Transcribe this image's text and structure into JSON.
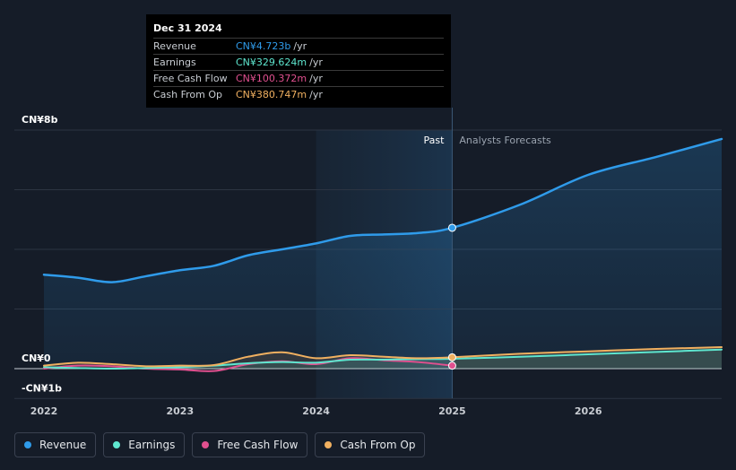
{
  "tooltip": {
    "date": "Dec 31 2024",
    "rows": [
      {
        "label": "Revenue",
        "value": "CN¥4.723b",
        "unit": "/yr",
        "color": "#2f9bea"
      },
      {
        "label": "Earnings",
        "value": "CN¥329.624m",
        "unit": "/yr",
        "color": "#5ee6cf"
      },
      {
        "label": "Free Cash Flow",
        "value": "CN¥100.372m",
        "unit": "/yr",
        "color": "#e0508f"
      },
      {
        "label": "Cash From Op",
        "value": "CN¥380.747m",
        "unit": "/yr",
        "color": "#f0b060"
      }
    ]
  },
  "legend": [
    {
      "label": "Revenue",
      "color": "#2f9bea"
    },
    {
      "label": "Earnings",
      "color": "#5ee6cf"
    },
    {
      "label": "Free Cash Flow",
      "color": "#e0508f"
    },
    {
      "label": "Cash From Op",
      "color": "#f0b060"
    }
  ],
  "chart_data": {
    "type": "line",
    "title": "",
    "xlabel": "",
    "ylabel": "",
    "ylim": [
      -1,
      8
    ],
    "xlim": [
      2022,
      2026.98
    ],
    "y_tick_labels": [
      {
        "value": 8,
        "label": "CN¥8b"
      },
      {
        "value": 0,
        "label": "CN¥0"
      },
      {
        "value": -1,
        "label": "-CN¥1b"
      }
    ],
    "gridlines": [
      8,
      6,
      4,
      2,
      0,
      -1
    ],
    "x_ticks": [
      {
        "value": 2022,
        "label": "2022"
      },
      {
        "value": 2023,
        "label": "2023"
      },
      {
        "value": 2024,
        "label": "2024"
      },
      {
        "value": 2025,
        "label": "2025"
      },
      {
        "value": 2026,
        "label": "2026"
      }
    ],
    "divider_x": 2025,
    "past_label": "Past",
    "forecast_label": "Analysts Forecasts",
    "series": [
      {
        "name": "Revenue",
        "color": "#2f9bea",
        "x": [
          2022,
          2022.25,
          2022.5,
          2022.75,
          2023,
          2023.25,
          2023.5,
          2023.75,
          2024,
          2024.25,
          2024.5,
          2024.75,
          2025,
          2025.5,
          2026,
          2026.5,
          2026.98
        ],
        "y": [
          3.15,
          3.05,
          2.9,
          3.1,
          3.3,
          3.45,
          3.8,
          4.0,
          4.2,
          4.45,
          4.5,
          4.55,
          4.723,
          5.5,
          6.5,
          7.1,
          7.7
        ]
      },
      {
        "name": "Earnings",
        "color": "#5ee6cf",
        "x": [
          2022,
          2022.25,
          2022.5,
          2022.75,
          2023,
          2023.25,
          2023.5,
          2023.75,
          2024,
          2024.25,
          2024.5,
          2024.75,
          2025,
          2025.5,
          2026,
          2026.5,
          2026.98
        ],
        "y": [
          0.05,
          0.02,
          0.0,
          0.02,
          0.05,
          0.1,
          0.18,
          0.22,
          0.2,
          0.3,
          0.3,
          0.32,
          0.33,
          0.4,
          0.48,
          0.56,
          0.64
        ]
      },
      {
        "name": "Free Cash Flow",
        "color": "#e0508f",
        "x": [
          2022,
          2022.25,
          2022.5,
          2022.75,
          2023,
          2023.25,
          2023.5,
          2023.75,
          2024,
          2024.25,
          2024.5,
          2024.75,
          2025
        ],
        "y": [
          0.0,
          0.1,
          0.08,
          0.0,
          -0.03,
          -0.08,
          0.15,
          0.25,
          0.15,
          0.35,
          0.28,
          0.22,
          0.1
        ]
      },
      {
        "name": "Cash From Op",
        "color": "#f0b060",
        "x": [
          2022,
          2022.25,
          2022.5,
          2022.75,
          2023,
          2023.25,
          2023.5,
          2023.75,
          2024,
          2024.25,
          2024.5,
          2024.75,
          2025,
          2025.5,
          2026,
          2026.5,
          2026.98
        ],
        "y": [
          0.1,
          0.2,
          0.15,
          0.08,
          0.1,
          0.12,
          0.4,
          0.55,
          0.35,
          0.45,
          0.4,
          0.35,
          0.38,
          0.5,
          0.58,
          0.66,
          0.72
        ]
      }
    ]
  }
}
